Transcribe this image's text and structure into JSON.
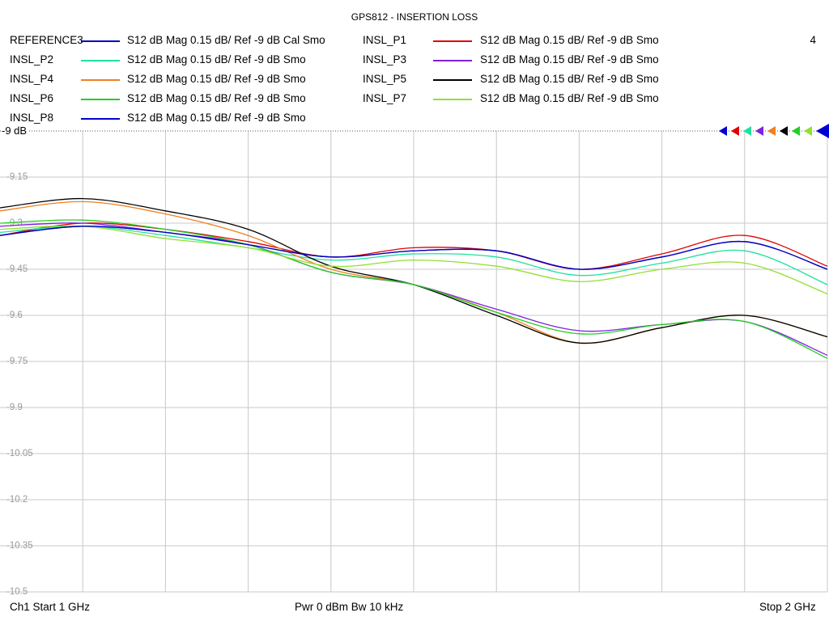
{
  "chart_data": {
    "type": "line",
    "title": "GPS812 - INSERTION LOSS",
    "ref_label": "-9 dB",
    "channel_number": "4",
    "x_range": [
      1,
      2
    ],
    "x_unit": "GHz",
    "ylim": [
      -10.5,
      -9.0
    ],
    "y_ticks": [
      "-9.15",
      "-9.3",
      "-9.45",
      "-9.6",
      "-9.75",
      "-9.9",
      "-10.05",
      "-10.2",
      "-10.35",
      "-10.5"
    ],
    "y_tick_values": [
      -9.15,
      -9.3,
      -9.45,
      -9.6,
      -9.75,
      -9.9,
      -10.05,
      -10.2,
      -10.35,
      -10.5
    ],
    "grid": true,
    "series": [
      {
        "name": "INSL_P1",
        "format": "S12  dB Mag  0.15 dB/ Ref -9 dB  Smo",
        "color": "#e00000",
        "x": [
          1.0,
          1.1,
          1.2,
          1.3,
          1.4,
          1.5,
          1.6,
          1.7,
          1.8,
          1.9,
          2.0
        ],
        "y": [
          -9.34,
          -9.3,
          -9.32,
          -9.36,
          -9.41,
          -9.38,
          -9.39,
          -9.45,
          -9.4,
          -9.34,
          -9.44
        ]
      },
      {
        "name": "INSL_P2",
        "format": "S12  dB Mag  0.15 dB/ Ref -9 dB  Smo",
        "color": "#20e0a0",
        "x": [
          1.0,
          1.1,
          1.2,
          1.3,
          1.4,
          1.5,
          1.6,
          1.7,
          1.8,
          1.9,
          2.0
        ],
        "y": [
          -9.33,
          -9.31,
          -9.34,
          -9.38,
          -9.42,
          -9.4,
          -9.41,
          -9.47,
          -9.43,
          -9.39,
          -9.5
        ]
      },
      {
        "name": "INSL_P3",
        "format": "S12  dB Mag  0.15 dB/ Ref -9 dB  Smo",
        "color": "#8020e0",
        "x": [
          1.0,
          1.1,
          1.2,
          1.3,
          1.4,
          1.5,
          1.6,
          1.7,
          1.8,
          1.9,
          2.0
        ],
        "y": [
          -9.31,
          -9.3,
          -9.33,
          -9.37,
          -9.46,
          -9.5,
          -9.58,
          -9.65,
          -9.63,
          -9.62,
          -9.73
        ]
      },
      {
        "name": "INSL_P4",
        "format": "S12  dB Mag  0.15 dB/ Ref -9 dB  Smo",
        "color": "#f08020",
        "x": [
          1.0,
          1.1,
          1.2,
          1.3,
          1.4,
          1.5,
          1.6,
          1.7,
          1.8,
          1.9,
          2.0
        ],
        "y": [
          -9.26,
          -9.23,
          -9.27,
          -9.34,
          -9.45,
          -9.5,
          -9.59,
          -9.69,
          -9.64,
          -9.6,
          -9.67
        ]
      },
      {
        "name": "INSL_P5",
        "format": "S12  dB Mag  0.15 dB/ Ref -9 dB  Smo",
        "color": "#000000",
        "x": [
          1.0,
          1.1,
          1.2,
          1.3,
          1.4,
          1.5,
          1.6,
          1.7,
          1.8,
          1.9,
          2.0
        ],
        "y": [
          -9.25,
          -9.22,
          -9.26,
          -9.32,
          -9.44,
          -9.5,
          -9.6,
          -9.69,
          -9.64,
          -9.6,
          -9.67
        ]
      },
      {
        "name": "INSL_P6",
        "format": "S12  dB Mag  0.15 dB/ Ref -9 dB  Smo",
        "color": "#20d020",
        "x": [
          1.0,
          1.1,
          1.2,
          1.3,
          1.4,
          1.5,
          1.6,
          1.7,
          1.8,
          1.9,
          2.0
        ],
        "y": [
          -9.3,
          -9.29,
          -9.32,
          -9.37,
          -9.46,
          -9.5,
          -9.59,
          -9.66,
          -9.63,
          -9.62,
          -9.74
        ]
      },
      {
        "name": "INSL_P7",
        "format": "S12  dB Mag  0.15 dB/ Ref -9 dB  Smo",
        "color": "#90e030",
        "x": [
          1.0,
          1.1,
          1.2,
          1.3,
          1.4,
          1.5,
          1.6,
          1.7,
          1.8,
          1.9,
          2.0
        ],
        "y": [
          -9.32,
          -9.31,
          -9.35,
          -9.38,
          -9.44,
          -9.42,
          -9.44,
          -9.49,
          -9.45,
          -9.43,
          -9.53
        ]
      },
      {
        "name": "INSL_P8",
        "format": "S12  dB Mag  0.15 dB/ Ref -9 dB  Smo",
        "color": "#0000d0",
        "x": [
          1.0,
          1.1,
          1.2,
          1.3,
          1.4,
          1.5,
          1.6,
          1.7,
          1.8,
          1.9,
          2.0
        ],
        "y": [
          -9.34,
          -9.31,
          -9.33,
          -9.37,
          -9.41,
          -9.39,
          -9.39,
          -9.45,
          -9.41,
          -9.36,
          -9.45
        ]
      },
      {
        "name": "REFERENCE3",
        "format": "S12  dB Mag  0.15 dB/ Ref -9 dB  Cal Smo",
        "color": "#0000c0",
        "x": [
          1.0,
          1.1,
          1.2,
          1.3,
          1.4,
          1.5,
          1.6,
          1.7,
          1.8,
          1.9,
          2.0
        ],
        "y": [
          -9.34,
          -9.31,
          -9.33,
          -9.37,
          -9.41,
          -9.39,
          -9.39,
          -9.45,
          -9.41,
          -9.36,
          -9.45
        ]
      }
    ]
  },
  "legend": [
    {
      "name": "REFERENCE3",
      "text": "S12  dB Mag  0.15 dB/ Ref -9 dB  Cal Smo",
      "color": "#0000c0"
    },
    {
      "name": "INSL_P2",
      "text": "S12  dB Mag  0.15 dB/ Ref -9 dB  Smo",
      "color": "#20e0a0"
    },
    {
      "name": "INSL_P4",
      "text": "S12  dB Mag  0.15 dB/ Ref -9 dB  Smo",
      "color": "#f08020"
    },
    {
      "name": "INSL_P6",
      "text": "S12  dB Mag  0.15 dB/ Ref -9 dB  Smo",
      "color": "#20d020"
    },
    {
      "name": "INSL_P8",
      "text": "S12  dB Mag  0.15 dB/ Ref -9 dB  Smo",
      "color": "#0000d0"
    },
    {
      "name": "INSL_P1",
      "text": "S12  dB Mag  0.15 dB/ Ref -9 dB  Smo",
      "color": "#e00000"
    },
    {
      "name": "INSL_P3",
      "text": "S12  dB Mag  0.15 dB/ Ref -9 dB  Smo",
      "color": "#8020e0"
    },
    {
      "name": "INSL_P5",
      "text": "S12  dB Mag  0.15 dB/ Ref -9 dB  Smo",
      "color": "#000000"
    },
    {
      "name": "INSL_P7",
      "text": "S12  dB Mag  0.15 dB/ Ref -9 dB  Smo",
      "color": "#90e030"
    }
  ],
  "marker_colors": [
    "#0000d0",
    "#e00000",
    "#20e0a0",
    "#8020e0",
    "#f08020",
    "#000000",
    "#20d020",
    "#90e030",
    "#0000d0"
  ],
  "footer": {
    "start": "Ch1  Start  1 GHz",
    "middle": "Pwr  0 dBm  Bw  10 kHz",
    "stop": "Stop  2 GHz"
  }
}
